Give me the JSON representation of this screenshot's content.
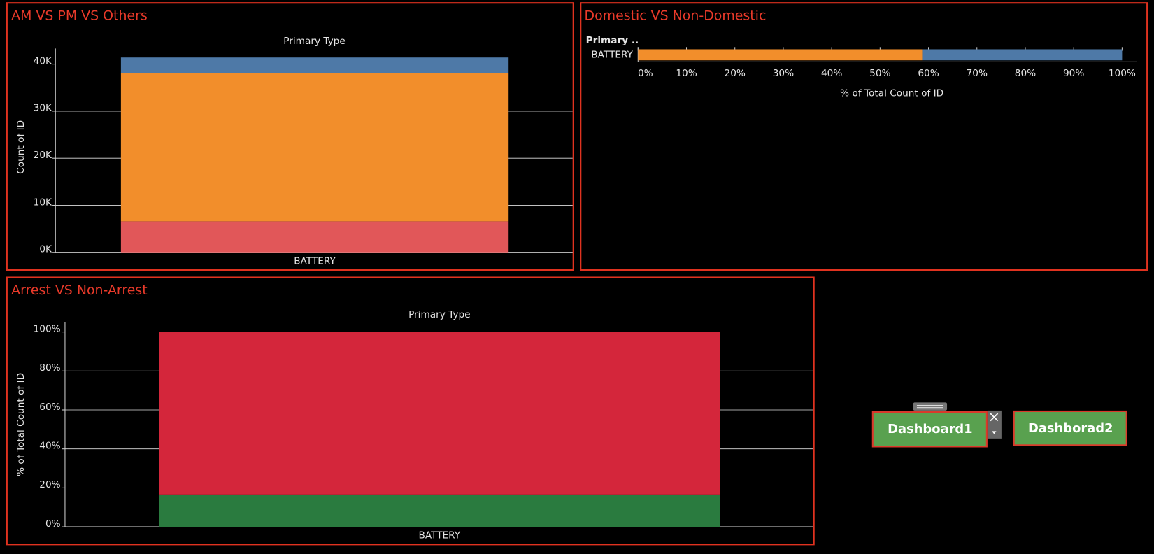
{
  "chart_data": [
    {
      "type": "bar",
      "orientation": "vertical",
      "stacked": true,
      "title": "AM VS PM VS Others",
      "header": "Primary Type",
      "y_label": "Count of ID",
      "categories": [
        "BATTERY"
      ],
      "series": [
        {
          "color": "#e15759",
          "values": [
            6600
          ]
        },
        {
          "color": "#f28e2b",
          "values": [
            31500
          ]
        },
        {
          "color": "#4e79a7",
          "values": [
            3300
          ]
        }
      ],
      "ylim": [
        0,
        43300
      ],
      "yticks": [
        {
          "value": 0,
          "label": "0K"
        },
        {
          "value": 10000,
          "label": "10K"
        },
        {
          "value": 20000,
          "label": "20K"
        },
        {
          "value": 30000,
          "label": "30K"
        },
        {
          "value": 40000,
          "label": "40K"
        }
      ],
      "grid": true
    },
    {
      "type": "bar",
      "orientation": "horizontal",
      "stacked": true,
      "title": "Domestic VS Non-Domestic",
      "header": "Primary ..",
      "x_label": "% of Total Count of ID",
      "categories": [
        "BATTERY"
      ],
      "series": [
        {
          "color": "#f28e2b",
          "values": [
            58.7
          ]
        },
        {
          "color": "#4e79a7",
          "values": [
            41.3
          ]
        }
      ],
      "xlim": [
        0,
        100
      ],
      "xticks": [
        {
          "value": 0,
          "label": "0%"
        },
        {
          "value": 10,
          "label": "10%"
        },
        {
          "value": 20,
          "label": "20%"
        },
        {
          "value": 30,
          "label": "30%"
        },
        {
          "value": 40,
          "label": "40%"
        },
        {
          "value": 50,
          "label": "50%"
        },
        {
          "value": 60,
          "label": "60%"
        },
        {
          "value": 70,
          "label": "70%"
        },
        {
          "value": 80,
          "label": "80%"
        },
        {
          "value": 90,
          "label": "90%"
        },
        {
          "value": 100,
          "label": "100%"
        }
      ],
      "grid": false
    },
    {
      "type": "bar",
      "orientation": "vertical",
      "stacked": true,
      "title": "Arrest VS Non-Arrest",
      "header": "Primary Type",
      "y_label": "% of Total Count of ID",
      "categories": [
        "BATTERY"
      ],
      "series": [
        {
          "color": "#2a7b3f",
          "values": [
            16.6
          ]
        },
        {
          "color": "#d4263b",
          "values": [
            83.4
          ]
        }
      ],
      "ylim": [
        0,
        105
      ],
      "yticks": [
        {
          "value": 0,
          "label": "0%"
        },
        {
          "value": 20,
          "label": "20%"
        },
        {
          "value": 40,
          "label": "40%"
        },
        {
          "value": 60,
          "label": "60%"
        },
        {
          "value": 80,
          "label": "80%"
        },
        {
          "value": 100,
          "label": "100%"
        }
      ],
      "grid": true
    }
  ],
  "buttons": [
    "Dashboard1",
    "Dashborad2"
  ]
}
